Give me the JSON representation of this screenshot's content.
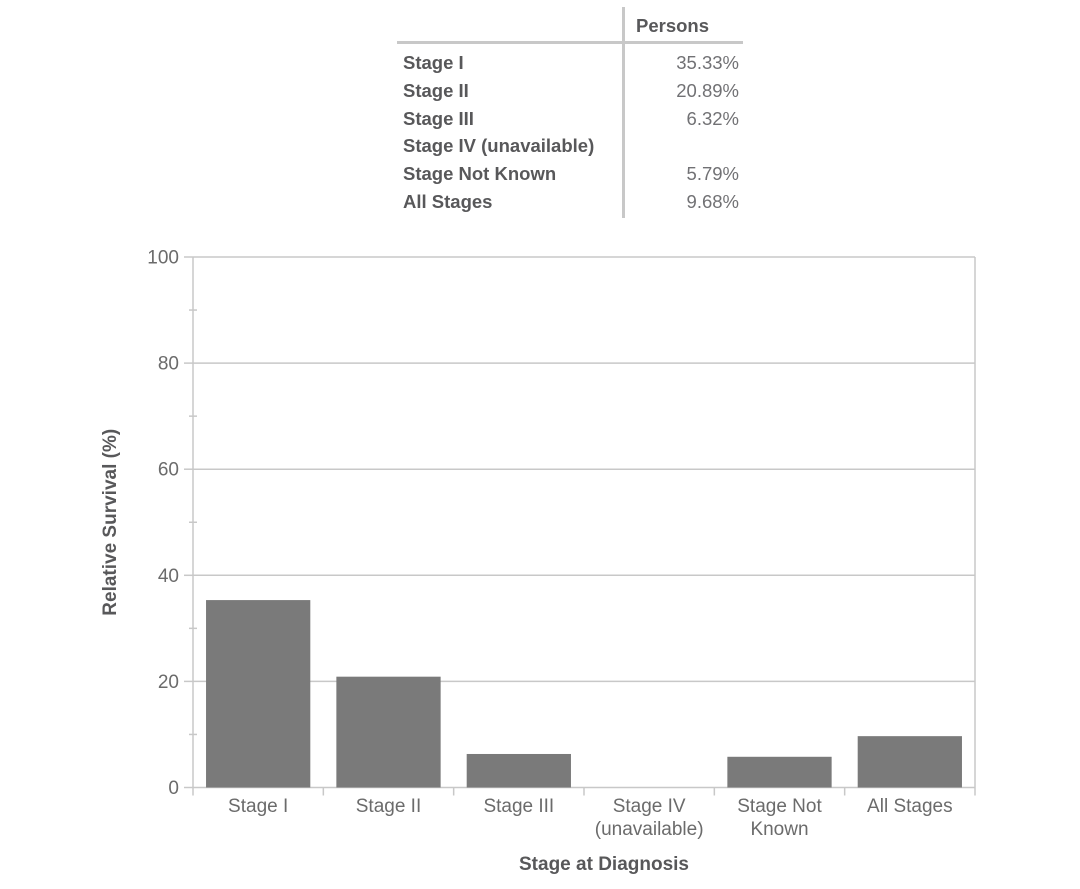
{
  "table": {
    "header": "Persons",
    "rows": [
      {
        "label": "Stage I",
        "value": "35.33%"
      },
      {
        "label": "Stage II",
        "value": "20.89%"
      },
      {
        "label": "Stage III",
        "value": "6.32%"
      },
      {
        "label": "Stage IV (unavailable)",
        "value": ""
      },
      {
        "label": "Stage Not Known",
        "value": "5.79%"
      },
      {
        "label": "All Stages",
        "value": "9.68%"
      }
    ]
  },
  "chart_data": {
    "type": "bar",
    "title": "",
    "xlabel": "Stage at Diagnosis",
    "ylabel": "Relative Survival (%)",
    "categories": [
      "Stage I",
      "Stage II",
      "Stage III",
      "Stage IV (unavailable)",
      "Stage Not Known",
      "All Stages"
    ],
    "category_label_lines": [
      [
        "Stage I"
      ],
      [
        "Stage II"
      ],
      [
        "Stage III"
      ],
      [
        "Stage IV",
        "(unavailable)"
      ],
      [
        "Stage Not",
        "Known"
      ],
      [
        "All Stages"
      ]
    ],
    "values": [
      35.33,
      20.89,
      6.32,
      null,
      5.79,
      9.68
    ],
    "ylim": [
      0,
      100
    ],
    "y_major_step": 20,
    "y_minor_step": 10,
    "grid": "horizontal-major",
    "legend": "none",
    "colors": {
      "bar": "#7a7a7a",
      "line": "#c8c8c8",
      "tick_text": "#6b6b6b",
      "label_text": "#58585a"
    }
  }
}
